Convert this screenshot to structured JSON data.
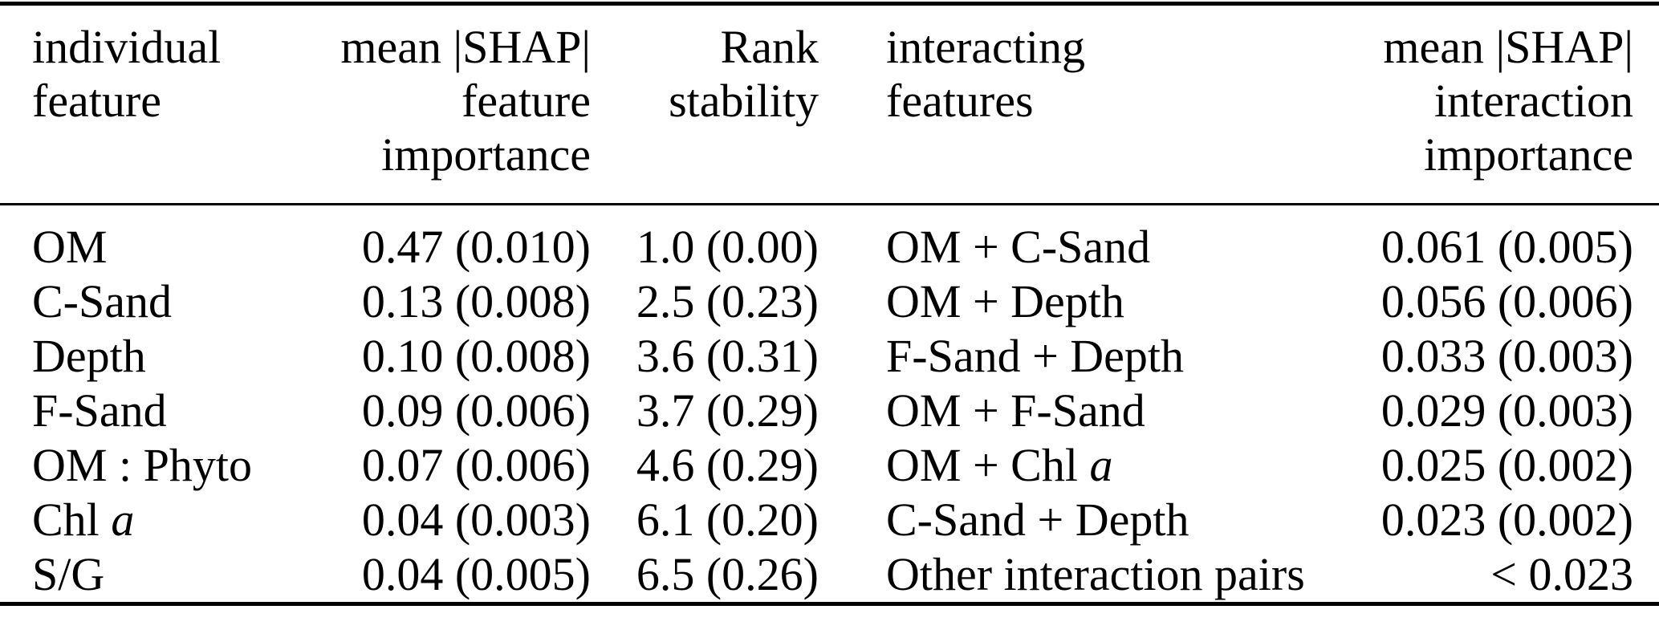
{
  "table": {
    "description": "Feature importance table: mean absolute SHAP values, rank stability, and SHAP interaction importances",
    "colors": {
      "background": "#ffffff",
      "text": "#000000",
      "rule": "#000000"
    },
    "columns": [
      {
        "id": "individual-feature",
        "align": "left",
        "header_lines": [
          "individual",
          "feature"
        ]
      },
      {
        "id": "shap-feature-importance",
        "align": "right",
        "header_lines": [
          "mean |SHAP|",
          "feature",
          "importance"
        ]
      },
      {
        "id": "rank-stability",
        "align": "right",
        "header_lines": [
          "Rank",
          "stability"
        ]
      },
      {
        "id": "interacting-features",
        "align": "left",
        "header_lines": [
          "interacting",
          "features"
        ]
      },
      {
        "id": "shap-interaction-importance",
        "align": "right",
        "header_lines": [
          "mean |SHAP|",
          "interaction",
          "importance"
        ]
      }
    ],
    "rows": [
      [
        "OM",
        "0.47 (0.010)",
        "1.0 (0.00)",
        "OM + C-Sand",
        "0.061 (0.005)"
      ],
      [
        "C-Sand",
        "0.13 (0.008)",
        "2.5 (0.23)",
        "OM + Depth",
        "0.056 (0.006)"
      ],
      [
        "Depth",
        "0.10 (0.008)",
        "3.6 (0.31)",
        "F-Sand + Depth",
        "0.033 (0.003)"
      ],
      [
        "F-Sand",
        "0.09 (0.006)",
        "3.7 (0.29)",
        "OM + F-Sand",
        "0.029 (0.003)"
      ],
      [
        "OM : Phyto",
        "0.07 (0.006)",
        "4.6 (0.29)",
        "OM + Chl *a*",
        "0.025 (0.002)"
      ],
      [
        "Chl *a*",
        "0.04 (0.003)",
        "6.1 (0.20)",
        "C-Sand + Depth",
        "0.023 (0.002)"
      ],
      [
        "S/G",
        "0.04 (0.005)",
        "6.5 (0.26)",
        "Other interaction pairs",
        "< 0.023"
      ]
    ]
  }
}
